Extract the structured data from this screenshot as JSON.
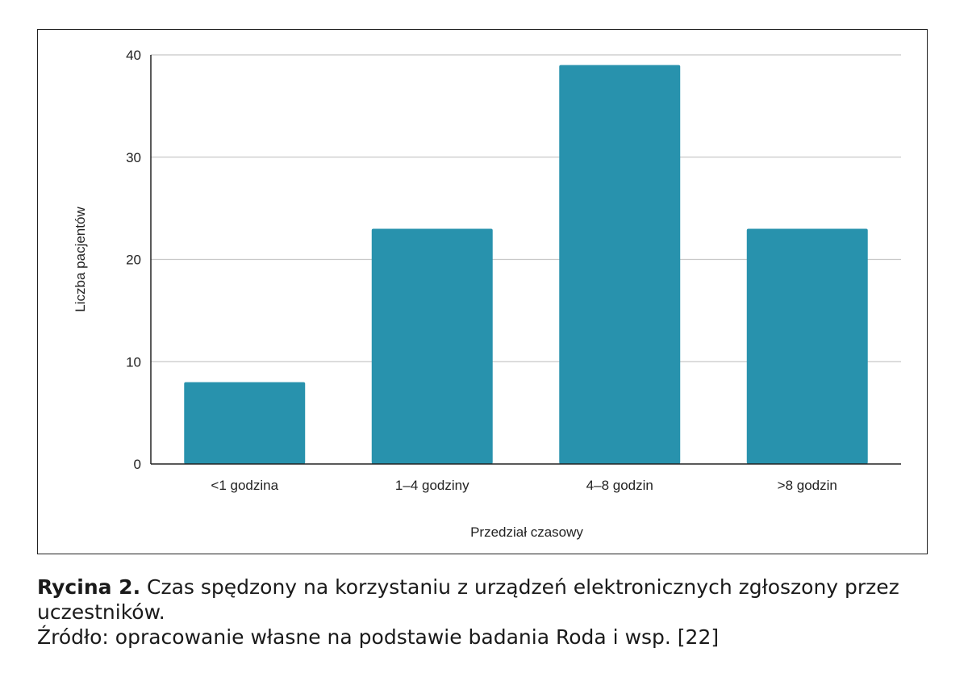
{
  "chart_data": {
    "type": "bar",
    "categories": [
      "<1 godzina",
      "1–4 godziny",
      "4–8 godzin",
      ">8 godzin"
    ],
    "values": [
      8,
      23,
      39,
      23
    ],
    "xlabel": "Przedział czasowy",
    "ylabel": "Liczba pacjentów",
    "ylim": [
      0,
      40
    ],
    "yticks": [
      0,
      10,
      20,
      30,
      40
    ],
    "grid": true,
    "legend": "none",
    "bar_color": "#2892ad",
    "gridline_color": "#c8c8c8"
  },
  "caption": {
    "label": "Rycina 2.",
    "text": " Czas spędzony na korzystaniu z urządzeń elektronicznych zgłoszony przez uczestników.",
    "source": "Źródło: opracowanie własne na podstawie badania Roda i wsp. [22]"
  }
}
